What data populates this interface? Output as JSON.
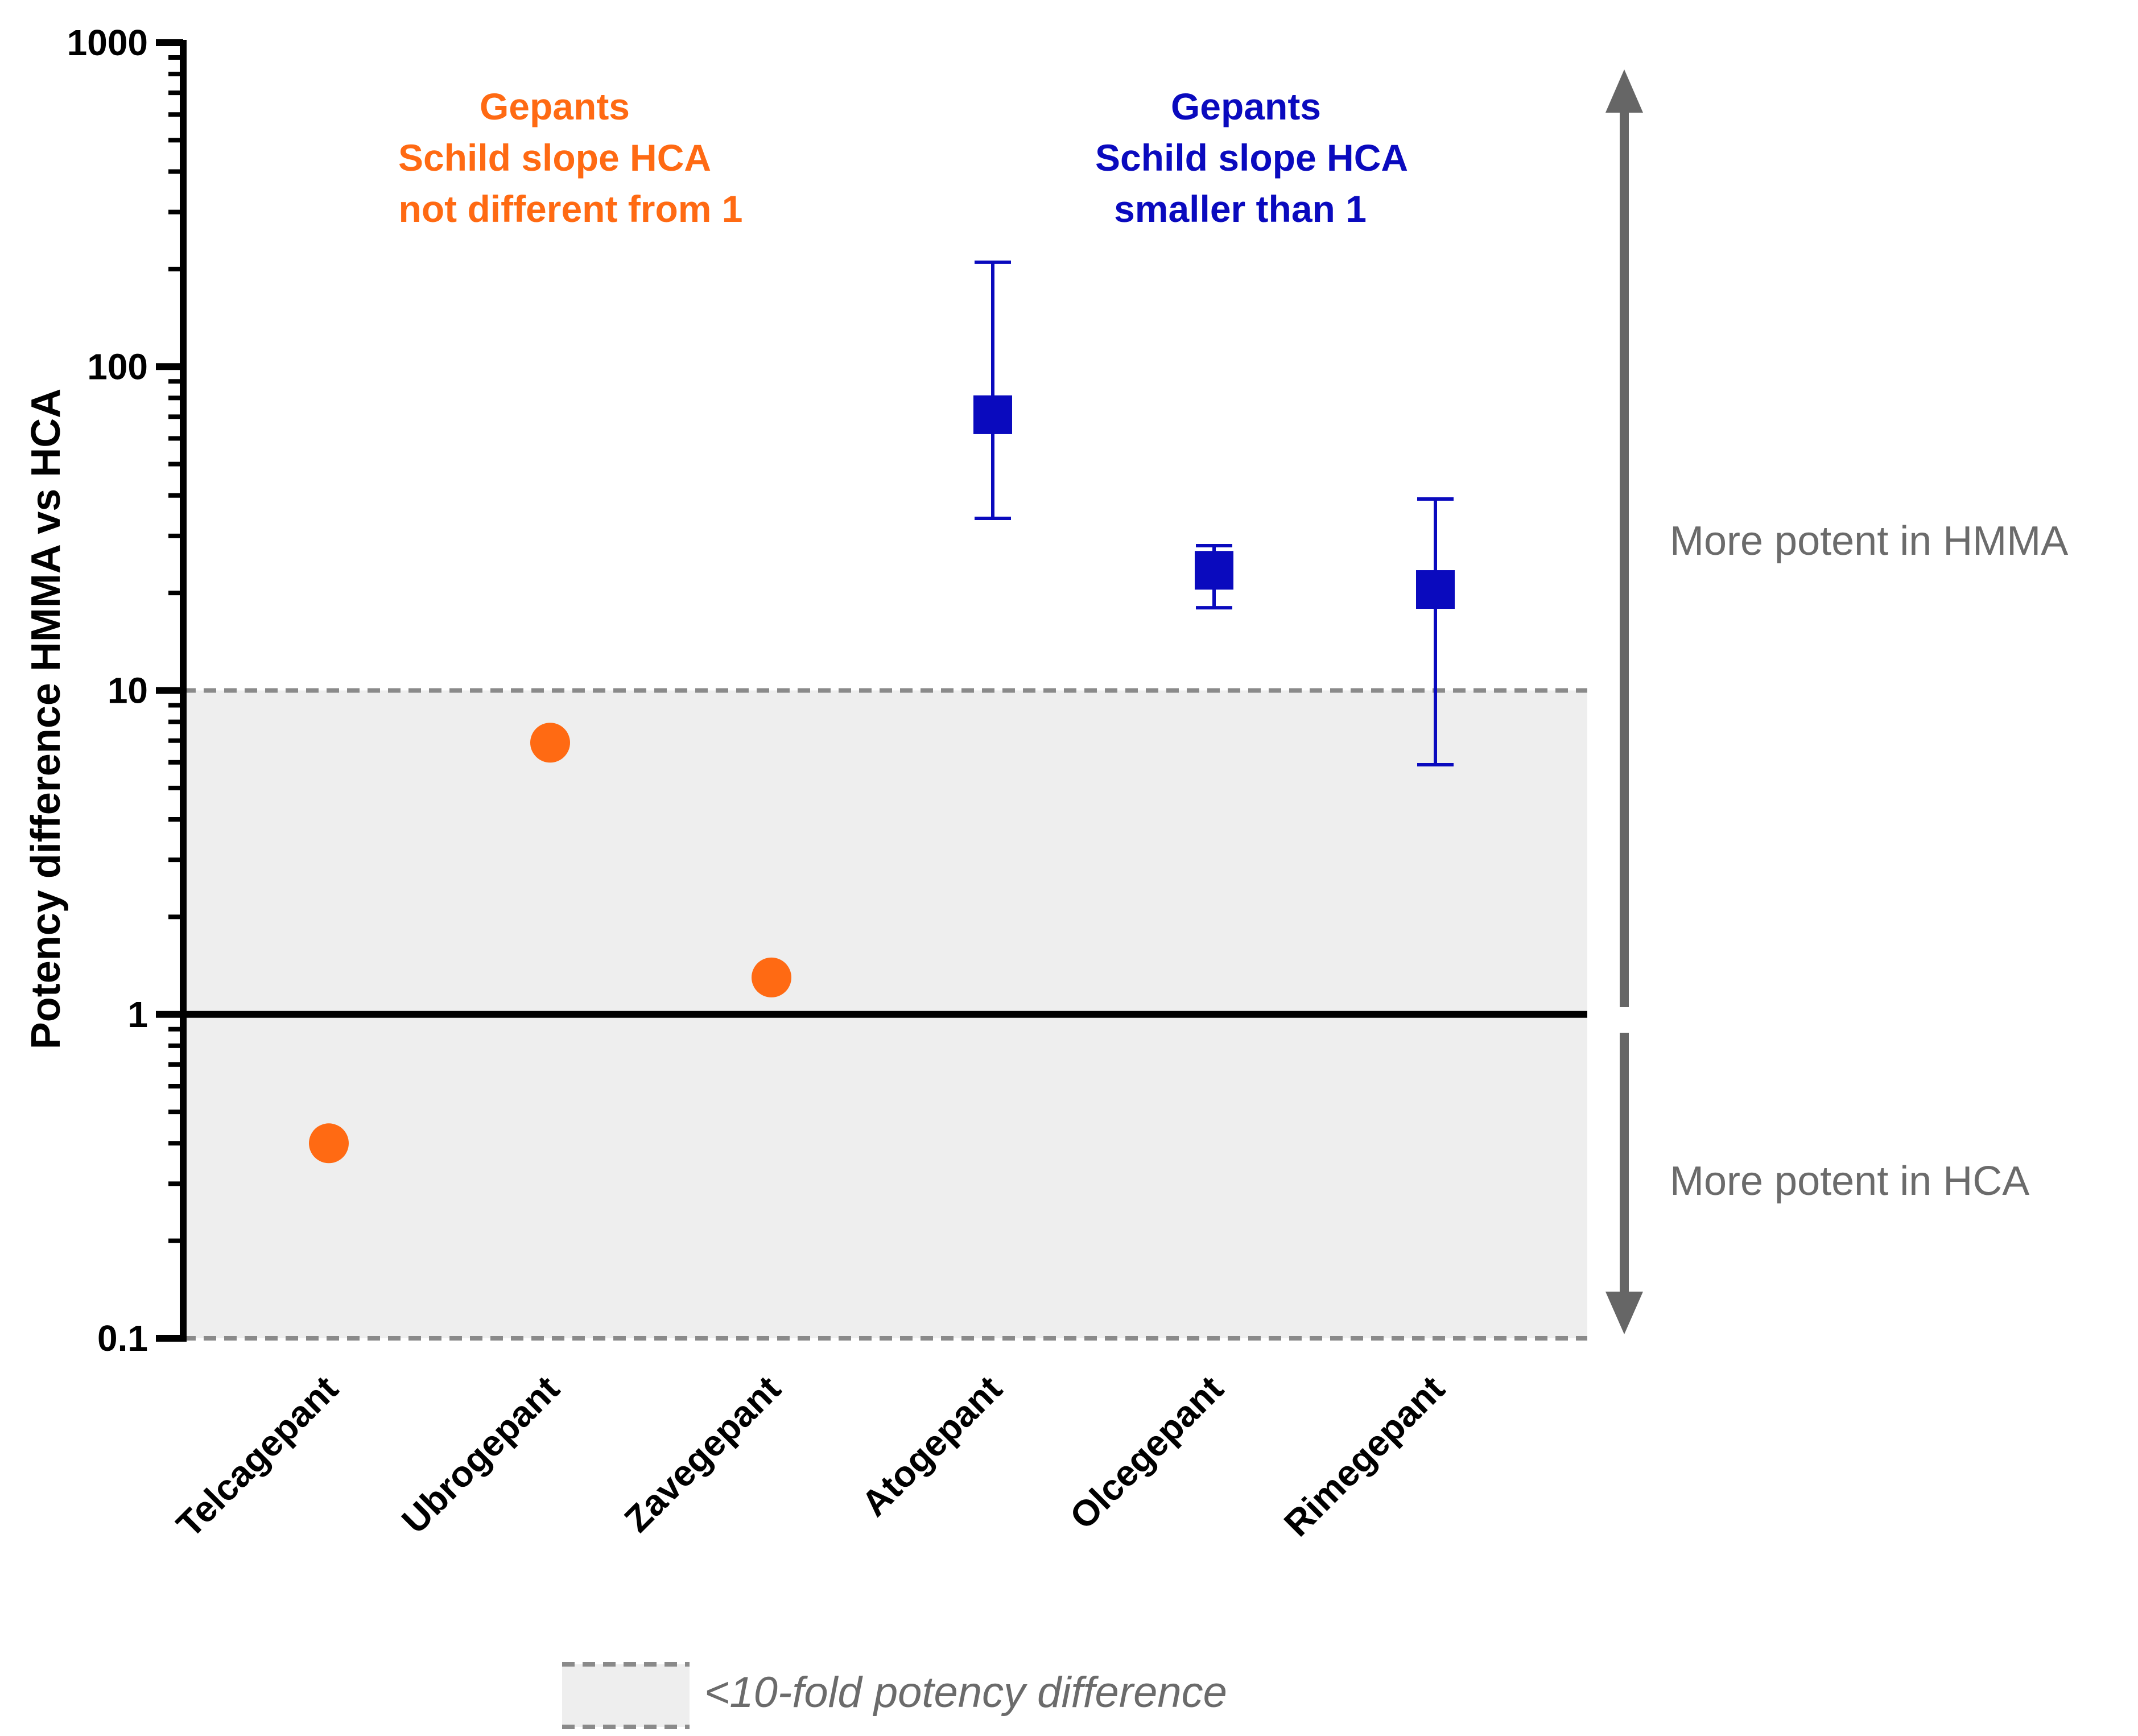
{
  "chart_data": {
    "type": "scatter",
    "title": "",
    "ylabel": "Potency difference HMMA vs HCA",
    "xlabel": "",
    "yscale": "log",
    "ylim": [
      0.1,
      1000
    ],
    "yticks": [
      "0.1",
      "1",
      "10",
      "100",
      "1000"
    ],
    "ytick_values": [
      0.1,
      1,
      10,
      100,
      1000
    ],
    "reference_line": 1,
    "band": {
      "low": 0.1,
      "high": 10,
      "label": "<10-fold potency difference"
    },
    "categories": [
      "Telcagepant",
      "Ubrogepant",
      "Zavegepant",
      "Atogepant",
      "Olcegepant",
      "Rimegepant"
    ],
    "series": [
      {
        "name": "Gepants Schild slope HCA not different from 1",
        "color": "#FF6A13",
        "marker": "circle",
        "points": [
          {
            "category": "Telcagepant",
            "value": 0.4
          },
          {
            "category": "Ubrogepant",
            "value": 6.9
          },
          {
            "category": "Zavegepant",
            "value": 1.3
          }
        ]
      },
      {
        "name": "Gepants Schild slope HCA smaller than 1",
        "color": "#0A0ABE",
        "marker": "square",
        "points": [
          {
            "category": "Atogepant",
            "value": 71,
            "err_low": 34,
            "err_high": 210
          },
          {
            "category": "Olcegepant",
            "value": 23.5,
            "err_low": 18,
            "err_high": 28
          },
          {
            "category": "Rimegepant",
            "value": 20.5,
            "err_low": 5.9,
            "err_high": 39
          }
        ]
      }
    ],
    "annotations": {
      "orange_group": [
        "Gepants",
        "Schild slope HCA",
        "not different from 1"
      ],
      "blue_group": [
        "Gepants",
        "Schild slope HCA",
        "smaller than 1"
      ],
      "upper_arrow_label": "More potent in HMMA",
      "lower_arrow_label": "More potent in HCA"
    }
  },
  "colors": {
    "orange": "#FF6A13",
    "blue": "#0A0ABE",
    "band": "#EEEEEE",
    "grey_text": "#6B6B6B",
    "arrow": "#666666",
    "dash": "#8A8A8A",
    "axis": "#000000"
  }
}
